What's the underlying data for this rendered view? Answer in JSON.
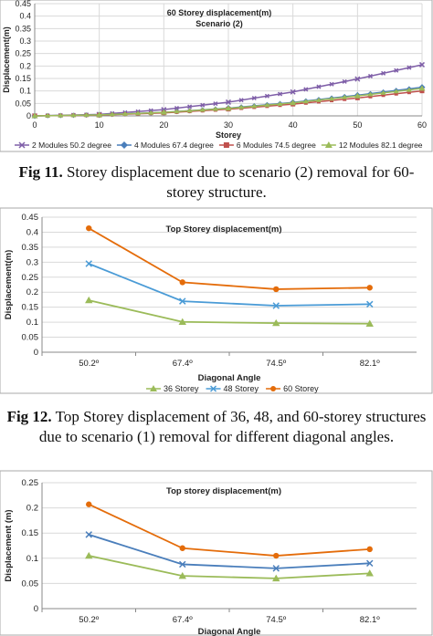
{
  "figures": [
    {
      "caption_label": "Fig 11.",
      "caption_text": "Storey displacement due to scenario (2) removal for 60-storey structure."
    },
    {
      "caption_label": "Fig 12.",
      "caption_text": "Top Storey displacement of 36, 48, and 60-storey structures due to scenario (1) removal for different diagonal angles."
    }
  ],
  "chart_data": [
    {
      "type": "line",
      "title": "60 Storey displacement(m)",
      "subtitle": "Scenario (2)",
      "xlabel": "Storey",
      "ylabel": "Displacement(m)",
      "x": [
        0,
        10,
        20,
        30,
        40,
        50,
        60
      ],
      "xlim": [
        0,
        60
      ],
      "ylim": [
        0,
        0.45
      ],
      "xticks": [
        "0",
        "10",
        "20",
        "30",
        "40",
        "50",
        "60"
      ],
      "yticks": [
        "0",
        "0.05",
        "0.1",
        "0.15",
        "0.2",
        "0.25",
        "0.3",
        "0.35",
        "0.4",
        "0.45"
      ],
      "grid": true,
      "legend_position": "bottom",
      "series": [
        {
          "name": "2 Modules 50.2 degree",
          "color": "#7f5fa8",
          "marker": "x",
          "values": [
            0,
            0.006,
            0.025,
            0.055,
            0.096,
            0.148,
            0.205
          ]
        },
        {
          "name": "4 Modules 67.4 degree",
          "color": "#4a7ebb",
          "marker": "diamond",
          "values": [
            0,
            0.004,
            0.014,
            0.031,
            0.054,
            0.083,
            0.115
          ]
        },
        {
          "name": "6 Modules 74.5 degree",
          "color": "#c0504d",
          "marker": "square",
          "values": [
            0,
            0.003,
            0.012,
            0.027,
            0.047,
            0.072,
            0.1
          ]
        },
        {
          "name": "12 Modules 82.1 degree",
          "color": "#9bbb59",
          "marker": "triangle",
          "values": [
            0,
            0.004,
            0.014,
            0.03,
            0.052,
            0.08,
            0.11
          ]
        }
      ]
    },
    {
      "type": "line",
      "title": "Top Storey displacement(m)",
      "xlabel": "Diagonal Angle",
      "ylabel": "Displacement(m)",
      "categories": [
        "50.2º",
        "67.4º",
        "74.5º",
        "82.1º"
      ],
      "ylim": [
        0,
        0.45
      ],
      "yticks": [
        "0",
        "0.05",
        "0.1",
        "0.15",
        "0.2",
        "0.25",
        "0.3",
        "0.35",
        "0.4",
        "0.45"
      ],
      "grid": true,
      "legend_position": "bottom",
      "series": [
        {
          "name": "36 Storey",
          "color": "#9bbb59",
          "marker": "triangle",
          "values": [
            0.173,
            0.101,
            0.097,
            0.095
          ]
        },
        {
          "name": "48 Storey",
          "color": "#4a9bd6",
          "marker": "x",
          "values": [
            0.295,
            0.17,
            0.155,
            0.16
          ]
        },
        {
          "name": "60 Storey",
          "color": "#e46c0a",
          "marker": "circle",
          "values": [
            0.413,
            0.233,
            0.21,
            0.215
          ]
        }
      ]
    },
    {
      "type": "line",
      "title": "Top storey displacement(m)",
      "xlabel": "Diagonal Angle",
      "ylabel": "Displacement (m)",
      "categories": [
        "50.2º",
        "67.4º",
        "74.5º",
        "82.1º"
      ],
      "ylim": [
        0,
        0.25
      ],
      "yticks": [
        "0",
        "0.05",
        "0.1",
        "0.15",
        "0.2",
        "0.25"
      ],
      "grid": true,
      "series": [
        {
          "name": "",
          "color": "#9bbb59",
          "marker": "triangle",
          "values": [
            0.105,
            0.065,
            0.06,
            0.07
          ]
        },
        {
          "name": "",
          "color": "#4a7ebb",
          "marker": "x",
          "values": [
            0.147,
            0.088,
            0.08,
            0.09
          ]
        },
        {
          "name": "",
          "color": "#e46c0a",
          "marker": "circle",
          "values": [
            0.207,
            0.12,
            0.105,
            0.118
          ]
        }
      ]
    }
  ]
}
